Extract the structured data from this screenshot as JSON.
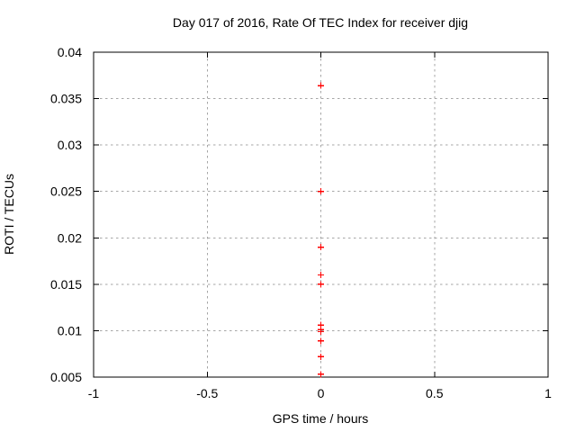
{
  "chart_data": {
    "type": "scatter",
    "title": "Day 017 of 2016, Rate Of TEC Index for receiver djig",
    "xlabel": "GPS time / hours",
    "ylabel": "ROTI / TECUs",
    "xlim": [
      -1,
      1
    ],
    "ylim": [
      0.005,
      0.04
    ],
    "xticks": [
      -1,
      -0.5,
      0,
      0.5,
      1
    ],
    "xtick_labels": [
      "-1",
      "-0.5",
      "0",
      "0.5",
      "1"
    ],
    "yticks": [
      0.005,
      0.01,
      0.015,
      0.02,
      0.025,
      0.03,
      0.035,
      0.04
    ],
    "ytick_labels": [
      "0.005",
      "0.01",
      "0.015",
      "0.02",
      "0.025",
      "0.03",
      "0.035",
      "0.04"
    ],
    "grid": true,
    "legend": "none",
    "marker": "plus",
    "marker_color": "#ff0000",
    "series": [
      {
        "name": "ROTI",
        "x": [
          0,
          0,
          0,
          0,
          0,
          0,
          0,
          0,
          0,
          0,
          0
        ],
        "y": [
          0.0364,
          0.025,
          0.019,
          0.016,
          0.015,
          0.0106,
          0.0101,
          0.0099,
          0.0089,
          0.0072,
          0.0053
        ]
      }
    ]
  }
}
